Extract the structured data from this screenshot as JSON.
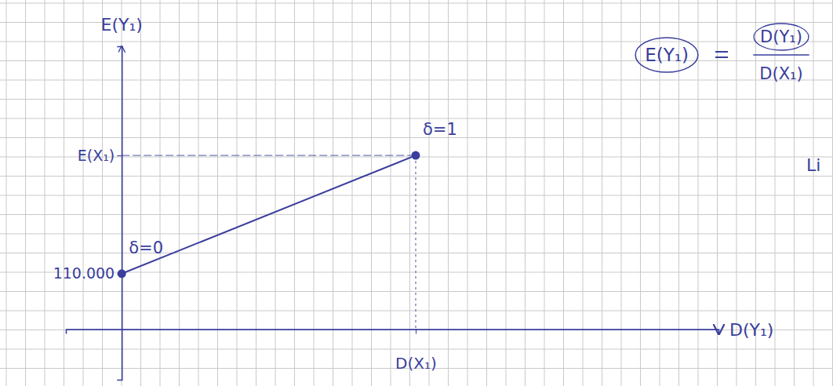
{
  "chart_data": {
    "type": "line",
    "x_label": "D(Y₁)",
    "y_label": "E(Y₁)",
    "x": [
      0,
      1
    ],
    "values": [
      110000,
      344000
    ],
    "point_labels": [
      "δ=0",
      "δ=1"
    ],
    "xlim": [
      -0.19,
      2.03
    ],
    "ylim": [
      -100000,
      560000
    ],
    "xticks": [
      {
        "value": 1,
        "label": "D(X₁)"
      }
    ],
    "yticks": [
      {
        "value": 110000,
        "label": "110.000"
      },
      {
        "value": 344000,
        "label": "E(X₁)"
      }
    ],
    "color": "#3a3e9c",
    "marker": "dot",
    "formula": {
      "lhs": "E(Y₁)",
      "numerator": "D(Y₁)",
      "denominator": "D(X₁)"
    },
    "annotations": [
      "Li"
    ]
  }
}
